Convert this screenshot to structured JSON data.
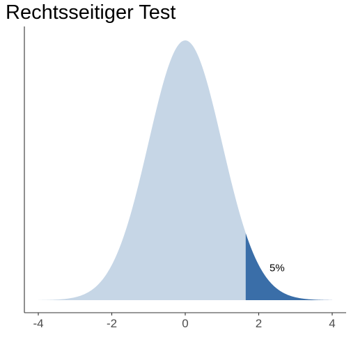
{
  "chart_data": {
    "type": "area",
    "title": "Rechtsseitiger Test",
    "xlabel": "",
    "ylabel": "",
    "distribution": "standard normal density",
    "xlim": [
      -4,
      4
    ],
    "ylim": [
      0,
      0.4
    ],
    "x_ticks": [
      -4,
      -2,
      0,
      2,
      4
    ],
    "x_tick_labels": [
      "-4",
      "-2",
      "0",
      "2",
      "4"
    ],
    "critical_value": 1.645,
    "series": [
      {
        "region": "acceptance",
        "x_range": [
          -4,
          1.645
        ],
        "color": "#c6d6e6"
      },
      {
        "region": "rejection",
        "x_range": [
          1.645,
          4
        ],
        "color": "#3a6ea8"
      }
    ],
    "annotations": [
      {
        "text": "5%",
        "x": 2.5,
        "y": 0.05
      }
    ],
    "grid": false,
    "legend": "none"
  }
}
